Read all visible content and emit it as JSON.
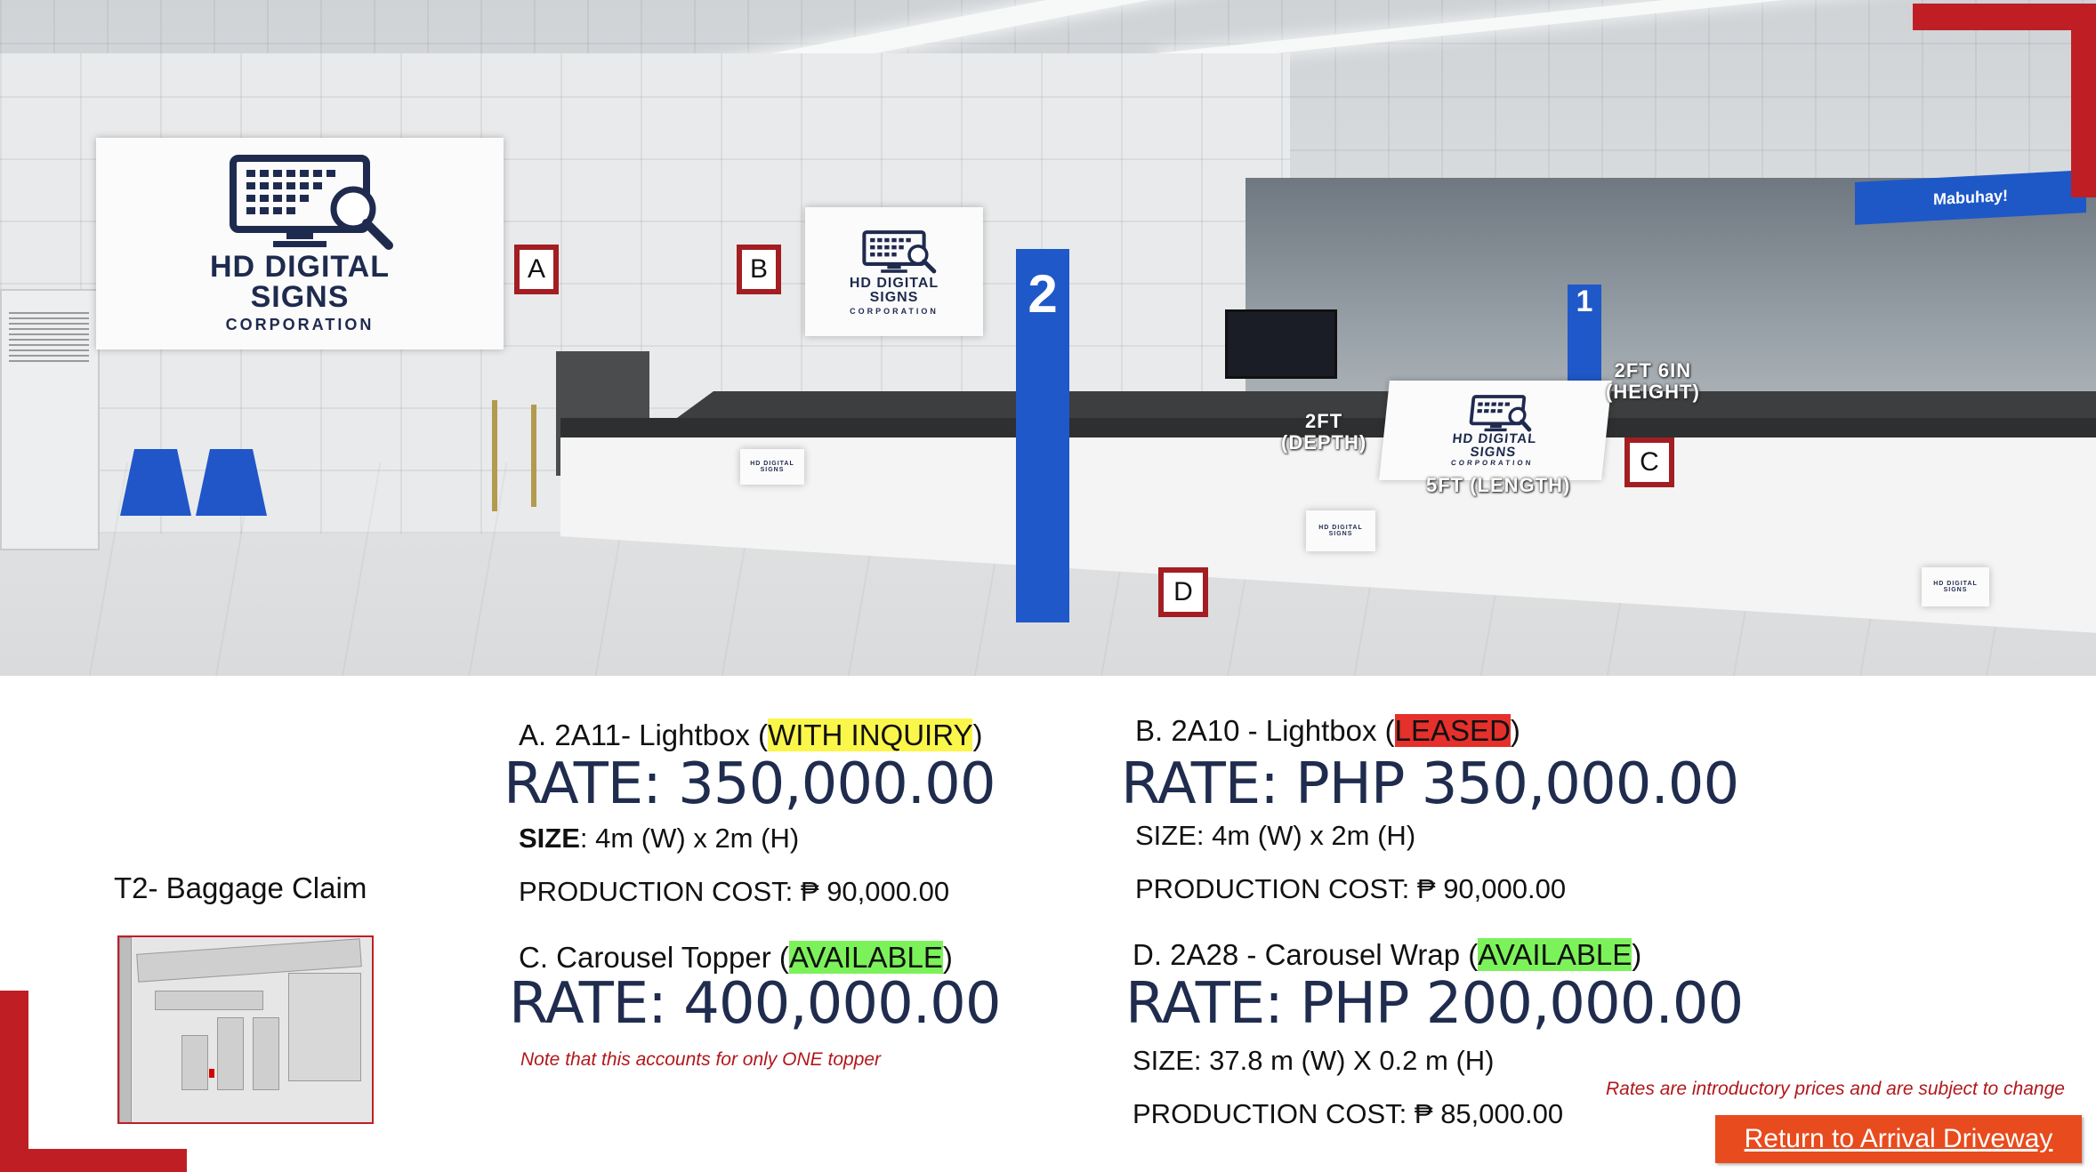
{
  "photo": {
    "markers": {
      "a": "A",
      "b": "B",
      "c": "C",
      "d": "D"
    },
    "logo": {
      "line1": "HD DIGITAL",
      "line2": "SIGNS",
      "line3": "CORPORATION"
    },
    "dimensions": {
      "height": "2FT 6IN\n(HEIGHT)",
      "depth": "2FT\n(DEPTH)",
      "length": "5FT (LENGTH)"
    },
    "signage": {
      "mabuhay": "Mabuhay!",
      "kiosk_2": "2",
      "kiosk_1": "1"
    }
  },
  "location": {
    "title": "T2- Baggage Claim"
  },
  "items": {
    "a": {
      "heading": "A. 2A11- Lightbox (",
      "status": "WITH INQUIRY",
      "heading_close": ")",
      "rate": "RATE: 350,000.00",
      "size_label": "SIZE",
      "size_value": ": 4m (W) x 2m (H)",
      "production": "PRODUCTION COST: ₱ 90,000.00"
    },
    "b": {
      "heading": "B. 2A10 - Lightbox (",
      "status": "LEASED",
      "heading_close": ")",
      "rate": "RATE: PHP 350,000.00",
      "size": "SIZE: 4m (W) x 2m (H)",
      "production": "PRODUCTION COST: ₱ 90,000.00"
    },
    "c": {
      "heading": "C. Carousel Topper (",
      "status": "AVAILABLE",
      "heading_close": ")",
      "rate": "RATE: 400,000.00",
      "note": "Note that this accounts for only ONE topper"
    },
    "d": {
      "heading": "D. 2A28 - Carousel Wrap (",
      "status": "AVAILABLE",
      "heading_close": ")",
      "rate": "RATE: PHP 200,000.00",
      "size": "SIZE: 37.8 m (W) X 0.2 m (H)",
      "production": "PRODUCTION COST: ₱ 85,000.00"
    }
  },
  "disclaimer": "Rates are introductory prices and are subject to change",
  "return_button": "Return to Arrival Driveway",
  "colors": {
    "accent": "#bf1f24",
    "rate_text": "#1f2c4e",
    "button": "#e84b1d"
  }
}
